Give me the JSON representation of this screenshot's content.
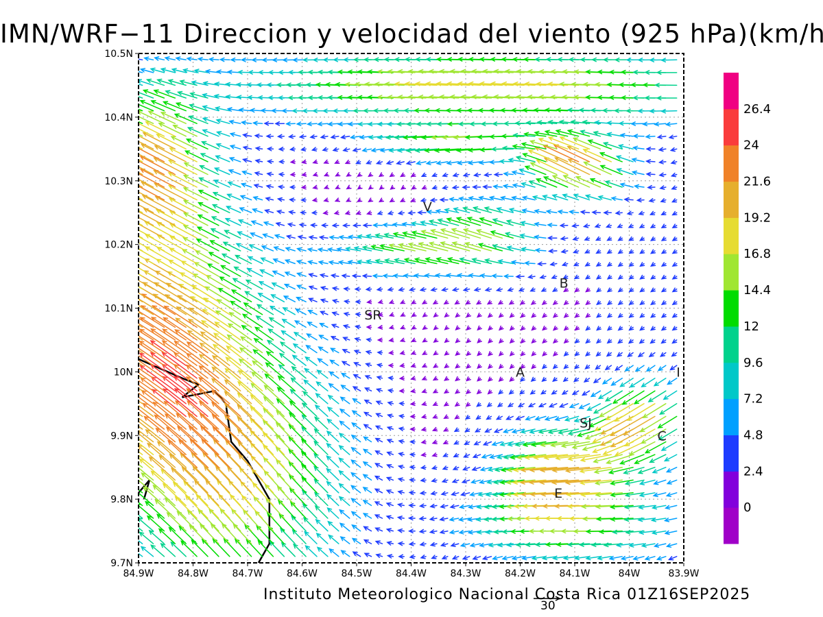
{
  "title": "IMN/WRF−11 Direccion y velocidad del viento (925 hPa)(km/h)",
  "footer": "Instituto Meteorologico Nacional Costa Rica 01Z16SEP2025",
  "reference_vector": {
    "label": "30",
    "speed_kmh": 30
  },
  "map": {
    "lon_range": [
      -84.9,
      -83.9
    ],
    "lat_range": [
      9.7,
      10.5
    ],
    "x_ticks": [
      {
        "lon": -84.9,
        "label": "84.9W"
      },
      {
        "lon": -84.8,
        "label": "84.8W"
      },
      {
        "lon": -84.7,
        "label": "84.7W"
      },
      {
        "lon": -84.6,
        "label": "84.6W"
      },
      {
        "lon": -84.5,
        "label": "84.5W"
      },
      {
        "lon": -84.4,
        "label": "84.4W"
      },
      {
        "lon": -84.3,
        "label": "84.3W"
      },
      {
        "lon": -84.2,
        "label": "84.2W"
      },
      {
        "lon": -84.1,
        "label": "84.1W"
      },
      {
        "lon": -84.0,
        "label": "84W"
      },
      {
        "lon": -83.9,
        "label": "83.9W"
      }
    ],
    "y_ticks": [
      {
        "lat": 9.7,
        "label": "9.7N"
      },
      {
        "lat": 9.8,
        "label": "9.8N"
      },
      {
        "lat": 9.9,
        "label": "9.9N"
      },
      {
        "lat": 10.0,
        "label": "10N"
      },
      {
        "lat": 10.1,
        "label": "10.1N"
      },
      {
        "lat": 10.2,
        "label": "10.2N"
      },
      {
        "lat": 10.3,
        "label": "10.3N"
      },
      {
        "lat": 10.4,
        "label": "10.4N"
      },
      {
        "lat": 10.5,
        "label": "10.5N"
      }
    ],
    "grid": true,
    "cities": [
      {
        "label": "V",
        "lon": -84.37,
        "lat": 10.26
      },
      {
        "label": "B",
        "lon": -84.12,
        "lat": 10.14
      },
      {
        "label": "SR",
        "lon": -84.47,
        "lat": 10.09
      },
      {
        "label": "A",
        "lon": -84.2,
        "lat": 10.0
      },
      {
        "label": "SJ",
        "lon": -84.08,
        "lat": 9.92
      },
      {
        "label": "I",
        "lon": -83.91,
        "lat": 10.0
      },
      {
        "label": "C",
        "lon": -83.94,
        "lat": 9.9
      },
      {
        "label": "E",
        "lon": -84.13,
        "lat": 9.81
      }
    ],
    "coastline": [
      [
        -84.9,
        10.02
      ],
      [
        -84.82,
        9.99
      ],
      [
        -84.79,
        9.98
      ],
      [
        -84.82,
        9.96
      ],
      [
        -84.76,
        9.97
      ],
      [
        -84.74,
        9.95
      ],
      [
        -84.73,
        9.89
      ],
      [
        -84.7,
        9.86
      ],
      [
        -84.68,
        9.83
      ],
      [
        -84.66,
        9.8
      ],
      [
        -84.66,
        9.73
      ],
      [
        -84.68,
        9.7
      ]
    ],
    "coastline_bottom": [
      [
        -84.9,
        9.81
      ],
      [
        -84.88,
        9.83
      ],
      [
        -84.89,
        9.8
      ]
    ]
  },
  "colorbar": {
    "colors": [
      "#a000c8",
      "#8200dc",
      "#1e3cff",
      "#00a0ff",
      "#00c8c8",
      "#00d28c",
      "#00dc00",
      "#a0e632",
      "#e6dc32",
      "#e6af2d",
      "#f08228",
      "#fa3c3c",
      "#f00082"
    ],
    "labels": [
      "0",
      "2.4",
      "4.8",
      "7.2",
      "9.6",
      "12",
      "14.4",
      "16.8",
      "19.2",
      "21.6",
      "24",
      "26.4"
    ]
  },
  "chart_data": {
    "type": "vector-field",
    "variable": "wind direction and speed at 925 hPa",
    "units": "km/h",
    "valid_time": "01Z16SEP2025",
    "xlim": [
      -84.9,
      -83.9
    ],
    "ylim": [
      9.7,
      10.5
    ],
    "levels": [
      0,
      2.4,
      4.8,
      7.2,
      9.6,
      12,
      14.4,
      16.8,
      19.2,
      21.6,
      24,
      26.4
    ],
    "sample_regions": [
      {
        "region": "northern band lat 10.35-10.5",
        "speed": 17,
        "dir_to": "W"
      },
      {
        "region": "northwest coast",
        "speed": 20,
        "dir_to": "NW"
      },
      {
        "region": "central valley",
        "speed": 3,
        "dir_to": "S"
      },
      {
        "region": "northeast 10.3N 84.1W",
        "speed": 26,
        "dir_to": "NW"
      },
      {
        "region": "east SJ-C",
        "speed": 14,
        "dir_to": "SW"
      }
    ]
  }
}
